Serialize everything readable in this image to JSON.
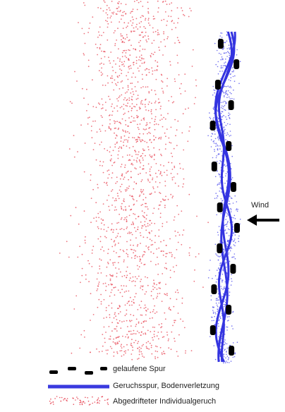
{
  "wind_label": "Wind",
  "legend": {
    "items": [
      {
        "label": "gelaufene Spur"
      },
      {
        "label": "Geruchsspur, Bodenverletzung"
      },
      {
        "label": "Abgedrifteter Individualgeruch"
      }
    ]
  }
}
